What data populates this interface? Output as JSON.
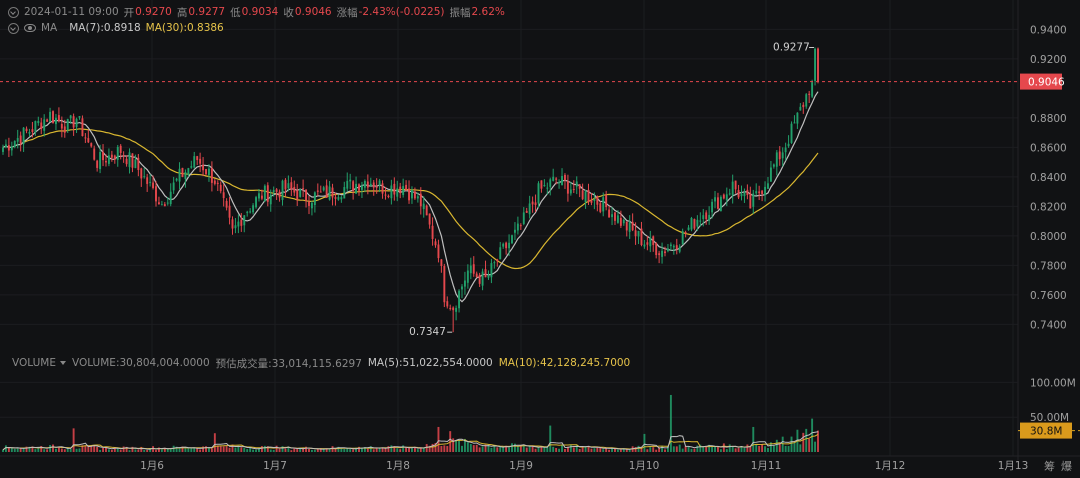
{
  "header": {
    "datetime": "2024-01-11 09:00",
    "open_label": "开",
    "open_value": "0.9270",
    "high_label": "高",
    "high_value": "0.9277",
    "low_label": "低",
    "low_value": "0.9034",
    "close_label": "收",
    "close_value": "0.9046",
    "change_label": "涨幅",
    "change_value": "-2.43%(-0.0225)",
    "amp_label": "振幅",
    "amp_value": "2.62%"
  },
  "ma_row": {
    "title": "MA",
    "ma7": "MA(7):0.8918",
    "ma30": "MA(30):0.8386"
  },
  "volume_row": {
    "title": "VOLUME",
    "volume": "VOLUME:30,804,004.0000",
    "est": "预估成交量:33,014,115.6297",
    "ma5": "MA(5):51,022,554.0000",
    "ma10": "MA(10):42,128,245.7000"
  },
  "bottom_icons": [
    "筹",
    "爆"
  ],
  "colors": {
    "up": "#22a06b",
    "down": "#e5484d",
    "ma7": "#bfbfbf",
    "ma30": "#d9b730",
    "bg": "#111214",
    "grid": "#1c1d20"
  },
  "chart_data": {
    "type": "candlestick",
    "price_axis": {
      "ticks": [
        "0.9400",
        "0.9200",
        "0.9046",
        "0.8800",
        "0.8600",
        "0.8400",
        "0.8200",
        "0.8000",
        "0.7800",
        "0.7600",
        "0.7400"
      ],
      "range": [
        0.726,
        0.945
      ]
    },
    "volume_axis": {
      "ticks": [
        "100.00M",
        "50.00M",
        "30.8M"
      ],
      "max": 115
    },
    "x_ticks": [
      "1月6",
      "1月7",
      "1月8",
      "1月9",
      "1月10",
      "1月11",
      "1月12",
      "1月13"
    ],
    "last_price": "0.9046",
    "annotations": {
      "high": "0.9277",
      "low": "0.7347"
    },
    "current_volume": "30.8M",
    "price_keys": [
      [
        0,
        0.86
      ],
      [
        8,
        0.87
      ],
      [
        16,
        0.882
      ],
      [
        22,
        0.874
      ],
      [
        25,
        0.88
      ],
      [
        32,
        0.85
      ],
      [
        40,
        0.858
      ],
      [
        46,
        0.845
      ],
      [
        54,
        0.822
      ],
      [
        60,
        0.84
      ],
      [
        66,
        0.852
      ],
      [
        72,
        0.838
      ],
      [
        78,
        0.802
      ],
      [
        82,
        0.816
      ],
      [
        88,
        0.828
      ],
      [
        96,
        0.832
      ],
      [
        104,
        0.826
      ],
      [
        112,
        0.83
      ],
      [
        118,
        0.834
      ],
      [
        124,
        0.838
      ],
      [
        130,
        0.832
      ],
      [
        136,
        0.834
      ],
      [
        142,
        0.822
      ],
      [
        148,
        0.79
      ],
      [
        150,
        0.76
      ],
      [
        153,
        0.752
      ],
      [
        158,
        0.776
      ],
      [
        164,
        0.77
      ],
      [
        170,
        0.79
      ],
      [
        176,
        0.806
      ],
      [
        182,
        0.83
      ],
      [
        188,
        0.838
      ],
      [
        194,
        0.832
      ],
      [
        200,
        0.826
      ],
      [
        206,
        0.818
      ],
      [
        212,
        0.806
      ],
      [
        218,
        0.796
      ],
      [
        224,
        0.79
      ],
      [
        230,
        0.798
      ],
      [
        236,
        0.812
      ],
      [
        242,
        0.822
      ],
      [
        248,
        0.834
      ],
      [
        254,
        0.82
      ],
      [
        260,
        0.84
      ],
      [
        266,
        0.862
      ],
      [
        270,
        0.88
      ],
      [
        274,
        0.9
      ],
      [
        277,
        0.905
      ]
    ],
    "volume_keys": [
      [
        0,
        6
      ],
      [
        20,
        7
      ],
      [
        40,
        5
      ],
      [
        60,
        6
      ],
      [
        80,
        7
      ],
      [
        100,
        5
      ],
      [
        120,
        6
      ],
      [
        140,
        6
      ],
      [
        150,
        14
      ],
      [
        170,
        8
      ],
      [
        190,
        7
      ],
      [
        210,
        5
      ],
      [
        230,
        7
      ],
      [
        250,
        8
      ],
      [
        262,
        12
      ],
      [
        274,
        22
      ],
      [
        277,
        28
      ]
    ],
    "volume_spikes": {
      "24": 34,
      "72": 27,
      "148": 36,
      "152": 30,
      "186": 38,
      "218": 26,
      "227": 82,
      "255": 36,
      "270": 32,
      "275": 48
    }
  }
}
